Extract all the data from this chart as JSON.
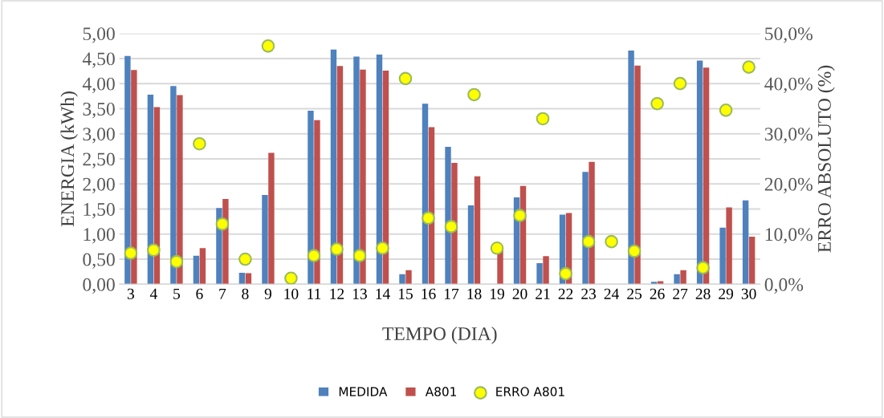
{
  "chart_data": {
    "type": "bar",
    "xlabel": "TEMPO (DIA)",
    "ylabel": "ENERGIA (kWh)",
    "y2label": "ERRO ABSOLUTO (%)",
    "categories": [
      "3",
      "4",
      "5",
      "6",
      "7",
      "8",
      "9",
      "10",
      "11",
      "12",
      "13",
      "14",
      "15",
      "16",
      "17",
      "18",
      "19",
      "20",
      "21",
      "22",
      "23",
      "24",
      "25",
      "26",
      "27",
      "28",
      "29",
      "30"
    ],
    "series": [
      {
        "name": "MEDIDA",
        "color": "#4f81bd",
        "values": [
          4.55,
          3.78,
          3.95,
          0.57,
          1.52,
          0.23,
          1.78,
          null,
          3.46,
          4.68,
          4.54,
          4.58,
          0.2,
          3.6,
          2.74,
          1.57,
          null,
          1.73,
          0.42,
          1.39,
          2.24,
          null,
          4.66,
          0.05,
          0.2,
          4.46,
          1.13,
          1.67
        ]
      },
      {
        "name": "A801",
        "color": "#c0504d",
        "values": [
          4.27,
          3.53,
          3.77,
          0.72,
          1.7,
          0.22,
          2.62,
          null,
          3.27,
          4.35,
          4.28,
          4.26,
          0.28,
          3.13,
          2.42,
          2.15,
          0.7,
          1.96,
          0.56,
          1.42,
          2.44,
          null,
          4.36,
          0.06,
          0.28,
          4.32,
          1.53,
          0.95
        ]
      },
      {
        "name": "ERRO A801",
        "color": "#ffff00",
        "type": "scatter",
        "axis": "y2",
        "values": [
          6.2,
          6.8,
          4.5,
          28.0,
          12.0,
          5.0,
          47.5,
          1.2,
          5.7,
          7.0,
          5.7,
          7.2,
          41.0,
          13.2,
          11.5,
          37.8,
          7.2,
          13.7,
          33.0,
          2.1,
          8.5,
          8.5,
          6.6,
          36.0,
          40.0,
          3.3,
          34.7,
          43.3
        ]
      }
    ],
    "ylim": [
      0,
      5
    ],
    "yticks": [
      {
        "value": 0,
        "label": "0,00"
      },
      {
        "value": 0.5,
        "label": "0,50"
      },
      {
        "value": 1,
        "label": "1,00"
      },
      {
        "value": 1.5,
        "label": "1,50"
      },
      {
        "value": 2,
        "label": "2,00"
      },
      {
        "value": 2.5,
        "label": "2,50"
      },
      {
        "value": 3,
        "label": "3,00"
      },
      {
        "value": 3.5,
        "label": "3,50"
      },
      {
        "value": 4,
        "label": "4,00"
      },
      {
        "value": 4.5,
        "label": "4,50"
      },
      {
        "value": 5,
        "label": "5,00"
      }
    ],
    "y2lim": [
      0,
      50
    ],
    "y2ticks": [
      {
        "value": 0,
        "label": "0,0%"
      },
      {
        "value": 10,
        "label": "10,0%"
      },
      {
        "value": 20,
        "label": "20,0%"
      },
      {
        "value": 30,
        "label": "30,0%"
      },
      {
        "value": 40,
        "label": "40,0%"
      },
      {
        "value": 50,
        "label": "50,0%"
      }
    ],
    "grid": "y",
    "legend": "bottom",
    "marker": "circle"
  }
}
